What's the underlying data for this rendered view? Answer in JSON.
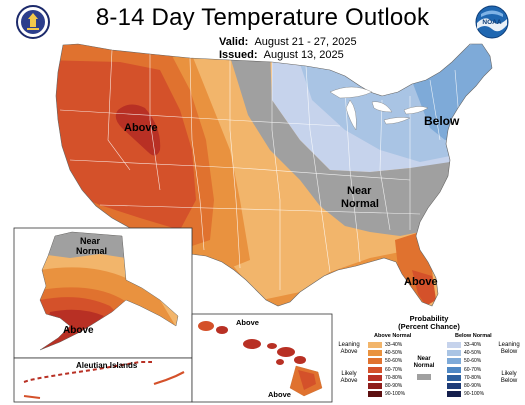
{
  "header": {
    "title": "8-14 Day Temperature Outlook",
    "valid_label": "Valid:",
    "valid_value": "August 21 - 27, 2025",
    "issued_label": "Issued:",
    "issued_value": "August 13, 2025"
  },
  "logos": {
    "left": "commerce-seal-icon",
    "right": "noaa-logo-icon",
    "right_text": "NOAA"
  },
  "map_labels": {
    "west_above": "Above",
    "northeast_below": "Below",
    "center_near_1": "Near",
    "center_near_2": "Normal",
    "florida_above": "Above",
    "alaska_near_1": "Near",
    "alaska_near_2": "Normal",
    "alaska_above": "Above",
    "hawaii_above_1": "Above",
    "hawaii_above_2": "Above",
    "aleutian": "Aleutian Islands"
  },
  "legend": {
    "title_1": "Probability",
    "title_2": "(Percent Chance)",
    "above_header": "Above Normal",
    "below_header": "Below Normal",
    "leaning_above": [
      "Leaning",
      "Above"
    ],
    "likely_above": [
      "Likely",
      "Above"
    ],
    "near_normal": [
      "Near",
      "Normal"
    ],
    "leaning_below": [
      "Leaning",
      "Below"
    ],
    "likely_below": [
      "Likely",
      "Below"
    ],
    "above_bins": [
      {
        "label": "33-40%",
        "color": "#f2b56b"
      },
      {
        "label": "40-50%",
        "color": "#e9923f"
      },
      {
        "label": "50-60%",
        "color": "#e0722f"
      },
      {
        "label": "60-70%",
        "color": "#d4512a"
      },
      {
        "label": "70-80%",
        "color": "#b83024"
      },
      {
        "label": "80-90%",
        "color": "#8e1d1b"
      },
      {
        "label": "90-100%",
        "color": "#5c0f10"
      }
    ],
    "near_color": "#a0a0a0",
    "below_bins": [
      {
        "label": "33-40%",
        "color": "#c6d3ec"
      },
      {
        "label": "40-50%",
        "color": "#a9c4e4"
      },
      {
        "label": "50-60%",
        "color": "#7eaad8"
      },
      {
        "label": "60-70%",
        "color": "#4f88c4"
      },
      {
        "label": "70-80%",
        "color": "#2c5f9e"
      },
      {
        "label": "80-90%",
        "color": "#1d3b77"
      },
      {
        "label": "90-100%",
        "color": "#151f4d"
      }
    ]
  },
  "colors": {
    "above_33": "#f2b56b",
    "above_40": "#e9923f",
    "above_50": "#e0722f",
    "above_60": "#d4512a",
    "above_70": "#b83024",
    "near": "#a0a0a0",
    "below_33": "#c6d3ec",
    "below_40": "#a9c4e4",
    "below_50": "#7eaad8",
    "state_line": "#ffffff"
  }
}
